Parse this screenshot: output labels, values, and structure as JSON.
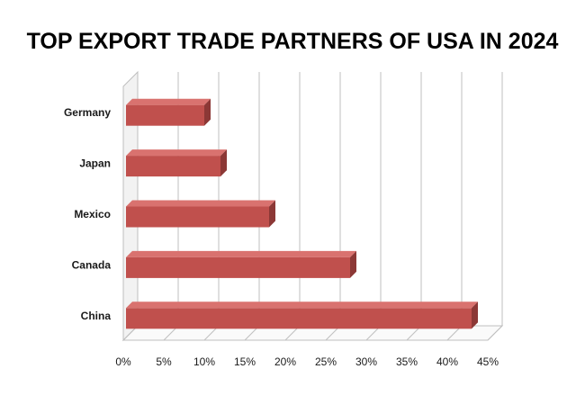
{
  "chart_data": {
    "type": "bar",
    "orientation": "horizontal",
    "style": "3d",
    "title": "TOP EXPORT TRADE PARTNERS OF USA IN 2024",
    "categories": [
      "China",
      "Canada",
      "Mexico",
      "Japan",
      "Germany"
    ],
    "values": [
      43,
      28,
      18,
      12,
      10
    ],
    "unit": "%",
    "xlim": [
      0,
      45
    ],
    "xticks": [
      "0%",
      "5%",
      "10%",
      "15%",
      "20%",
      "25%",
      "30%",
      "35%",
      "40%",
      "45%"
    ],
    "xlabel": "",
    "ylabel": "",
    "grid": true,
    "legend": "none",
    "colors": {
      "bar_front": "#c0504d",
      "bar_top": "#d9726f",
      "bar_side": "#8c3836",
      "grid": "#bfbfbf",
      "wall": "#f2f2f2"
    }
  }
}
